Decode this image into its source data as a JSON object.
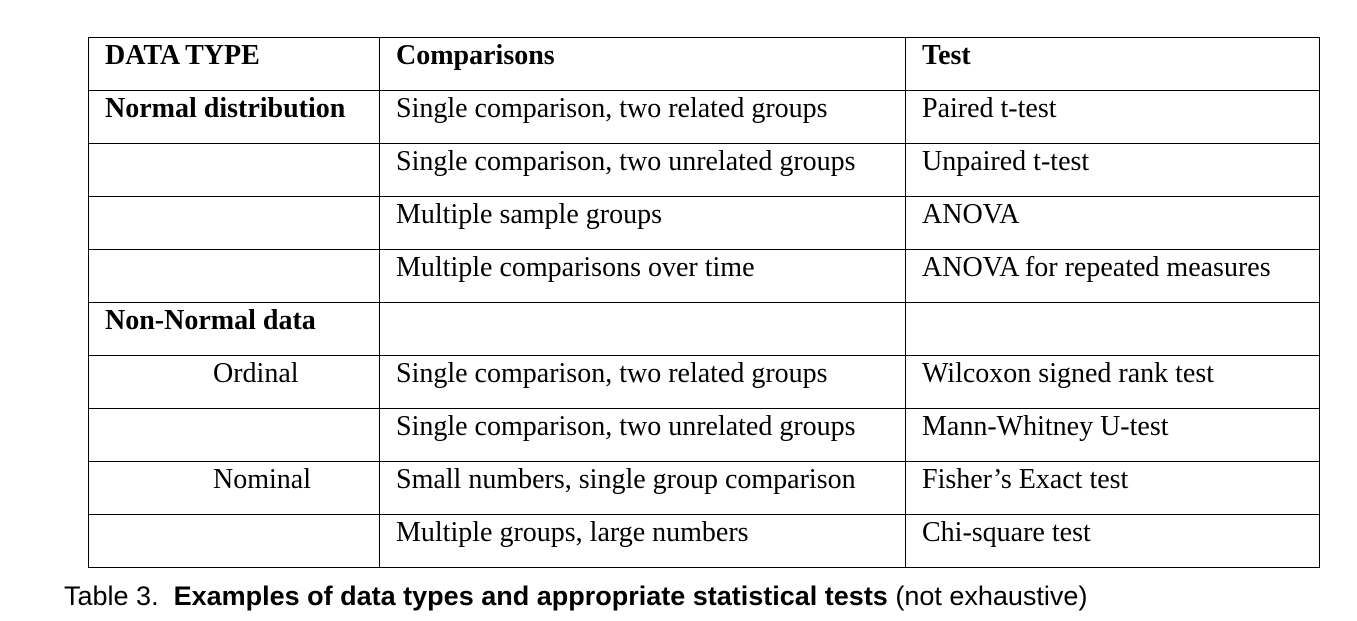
{
  "table": {
    "headers": [
      "DATA TYPE",
      "Comparisons",
      "Test"
    ],
    "rows": [
      {
        "data_type": "Normal distribution",
        "data_type_style": "bold",
        "comparison": "Single comparison, two related groups",
        "test": "Paired t-test"
      },
      {
        "data_type": "",
        "data_type_style": "",
        "comparison": "Single comparison, two unrelated groups",
        "test": "Unpaired t-test"
      },
      {
        "data_type": "",
        "data_type_style": "",
        "comparison": "Multiple sample groups",
        "test": "ANOVA"
      },
      {
        "data_type": "",
        "data_type_style": "",
        "comparison": "Multiple comparisons over time",
        "test": "ANOVA for repeated measures"
      },
      {
        "data_type": "Non-Normal data",
        "data_type_style": "bold",
        "comparison": "",
        "test": ""
      },
      {
        "data_type": "Ordinal",
        "data_type_style": "indent",
        "comparison": "Single comparison, two related groups",
        "test": "Wilcoxon signed rank test"
      },
      {
        "data_type": "",
        "data_type_style": "",
        "comparison": "Single comparison, two unrelated groups",
        "test": "Mann-Whitney U-test"
      },
      {
        "data_type": "Nominal",
        "data_type_style": "indent",
        "comparison": "Small numbers, single group comparison",
        "test": "Fisher’s Exact test"
      },
      {
        "data_type": "",
        "data_type_style": "",
        "comparison": "Multiple groups, large numbers",
        "test": "Chi-square test"
      }
    ]
  },
  "caption": {
    "label": "Table 3.",
    "title": "Examples of data types and appropriate statistical tests",
    "note": "(not exhaustive)"
  }
}
